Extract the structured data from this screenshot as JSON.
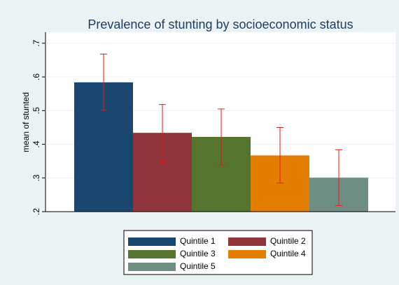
{
  "chart_data": {
    "type": "bar",
    "title": "Prevalence of stunting by socioeconomic status",
    "y_label": "mean of stunted",
    "ylim": [
      0.2,
      0.733
    ],
    "yticks": [
      {
        "value": 0.2,
        "label": ".2"
      },
      {
        "value": 0.3,
        "label": ".3"
      },
      {
        "value": 0.4,
        "label": ".4"
      },
      {
        "value": 0.5,
        "label": ".5"
      },
      {
        "value": 0.6,
        "label": ".6"
      },
      {
        "value": 0.7,
        "label": ".7"
      }
    ],
    "grid": true,
    "error_color": "#e8191e",
    "series": [
      {
        "name": "Quintile 1",
        "color": "#1a476f",
        "values": [
          0.584
        ],
        "ci_low": [
          0.501
        ],
        "ci_high": [
          0.668
        ]
      },
      {
        "name": "Quintile 2",
        "color": "#90353b",
        "values": [
          0.434
        ],
        "ci_low": [
          0.346
        ],
        "ci_high": [
          0.518
        ]
      },
      {
        "name": "Quintile 3",
        "color": "#55752f",
        "values": [
          0.422
        ],
        "ci_low": [
          0.339
        ],
        "ci_high": [
          0.505
        ]
      },
      {
        "name": "Quintile 4",
        "color": "#e37e00",
        "values": [
          0.367
        ],
        "ci_low": [
          0.285
        ],
        "ci_high": [
          0.45
        ]
      },
      {
        "name": "Quintile 5",
        "color": "#6e8e84",
        "values": [
          0.301
        ],
        "ci_low": [
          0.218
        ],
        "ci_high": [
          0.384
        ]
      }
    ]
  }
}
